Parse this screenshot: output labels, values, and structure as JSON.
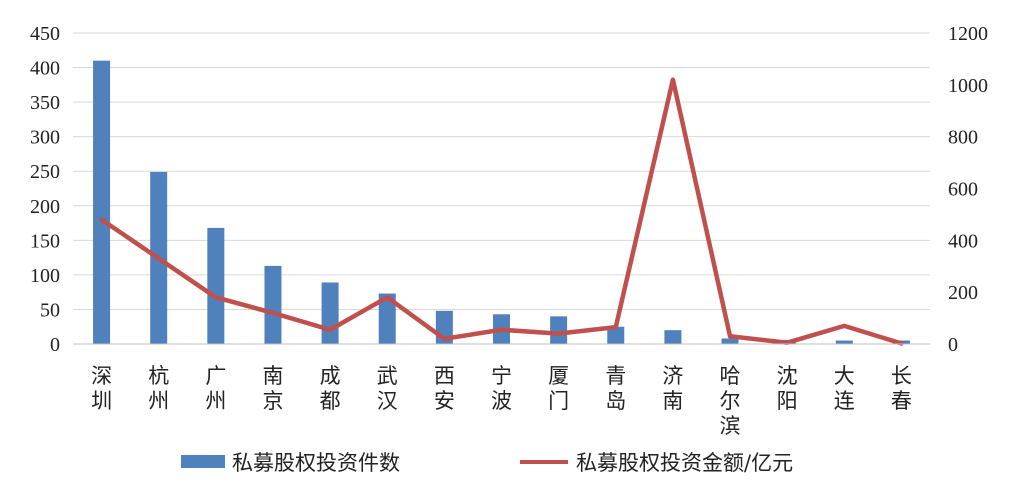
{
  "chart_data": {
    "type": "bar",
    "categories": [
      "深圳",
      "杭州",
      "广州",
      "南京",
      "成都",
      "武汉",
      "西安",
      "宁波",
      "厦门",
      "青岛",
      "济南",
      "哈尔滨",
      "沈阳",
      "大连",
      "长春"
    ],
    "series": [
      {
        "name": "私募股权投资件数",
        "type": "bar",
        "axis": "left",
        "color": "#4F81BD",
        "values": [
          410,
          249,
          168,
          113,
          89,
          73,
          48,
          43,
          40,
          25,
          20,
          8,
          6,
          5,
          5
        ]
      },
      {
        "name": "私募股权投资金额/亿元",
        "type": "line",
        "axis": "right",
        "color": "#C0504D",
        "values": [
          480,
          330,
          180,
          120,
          55,
          180,
          20,
          55,
          40,
          65,
          1020,
          30,
          5,
          70,
          2
        ]
      }
    ],
    "y_left": {
      "ticks": [
        0,
        50,
        100,
        150,
        200,
        250,
        300,
        350,
        400,
        450
      ],
      "range": [
        0,
        450
      ]
    },
    "y_right": {
      "ticks": [
        0,
        200,
        400,
        600,
        800,
        1000,
        1200
      ],
      "range": [
        0,
        1200
      ]
    },
    "grid": true,
    "legend_position": "bottom"
  }
}
